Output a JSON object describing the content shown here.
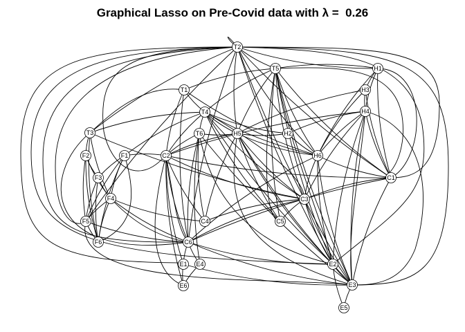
{
  "title": "Graphical Lasso on Pre-Covid data with λ =  0.26",
  "nodes": [
    "T2",
    "T5",
    "H1",
    "H3",
    "H4",
    "T1",
    "T4",
    "T6",
    "H5",
    "H2",
    "T3",
    "F2",
    "F1",
    "C2",
    "H6",
    "C1",
    "F3",
    "F4",
    "C3",
    "F5",
    "C4",
    "C5",
    "F6",
    "C6",
    "E1",
    "E4",
    "E2",
    "E6",
    "E3",
    "E5"
  ],
  "edges": [
    [
      "T2",
      "T5"
    ],
    [
      "T2",
      "H5"
    ],
    [
      "T2",
      "H1"
    ],
    [
      "T2",
      "T3"
    ],
    [
      "T2",
      "C1"
    ],
    [
      "T2",
      "E2"
    ],
    [
      "T2",
      "E3"
    ],
    [
      "T2",
      "C6"
    ],
    [
      "T2",
      "H6"
    ],
    [
      "T2",
      "F5"
    ],
    [
      "T5",
      "T4"
    ],
    [
      "T5",
      "H5"
    ],
    [
      "T5",
      "H6"
    ],
    [
      "T5",
      "C3"
    ],
    [
      "T5",
      "C5"
    ],
    [
      "T5",
      "E2"
    ],
    [
      "T5",
      "E3"
    ],
    [
      "T5",
      "C1"
    ],
    [
      "T5",
      "T1"
    ],
    [
      "H1",
      "H3"
    ],
    [
      "H1",
      "H4"
    ],
    [
      "H1",
      "C1"
    ],
    [
      "H1",
      "H6"
    ],
    [
      "H1",
      "T5"
    ],
    [
      "H3",
      "H4"
    ],
    [
      "H3",
      "C1"
    ],
    [
      "H3",
      "H6"
    ],
    [
      "H3",
      "H5"
    ],
    [
      "H4",
      "H2"
    ],
    [
      "H4",
      "H6"
    ],
    [
      "H4",
      "C1"
    ],
    [
      "H4",
      "E2"
    ],
    [
      "H4",
      "E3"
    ],
    [
      "H4",
      "C3"
    ],
    [
      "H4",
      "C2"
    ],
    [
      "T1",
      "T4"
    ],
    [
      "T1",
      "C2"
    ],
    [
      "T1",
      "H6"
    ],
    [
      "T1",
      "C6"
    ],
    [
      "T4",
      "T6"
    ],
    [
      "T4",
      "H5"
    ],
    [
      "T4",
      "H2"
    ],
    [
      "T4",
      "H6"
    ],
    [
      "T4",
      "C2"
    ],
    [
      "T4",
      "F1"
    ],
    [
      "T4",
      "C3"
    ],
    [
      "T4",
      "E2"
    ],
    [
      "T4",
      "C5"
    ],
    [
      "T4",
      "T3"
    ],
    [
      "T6",
      "C4"
    ],
    [
      "T6",
      "C2"
    ],
    [
      "T6",
      "H5"
    ],
    [
      "T6",
      "C6"
    ],
    [
      "T6",
      "E4"
    ],
    [
      "T6",
      "E3"
    ],
    [
      "H5",
      "H2"
    ],
    [
      "H5",
      "H6"
    ],
    [
      "H5",
      "C5"
    ],
    [
      "H5",
      "C3"
    ],
    [
      "H5",
      "E2"
    ],
    [
      "H5",
      "C2"
    ],
    [
      "H5",
      "C4"
    ],
    [
      "H5",
      "E3"
    ],
    [
      "H2",
      "H6"
    ],
    [
      "H6",
      "C1"
    ],
    [
      "H6",
      "C3"
    ],
    [
      "H6",
      "E2"
    ],
    [
      "H6",
      "E3"
    ],
    [
      "H6",
      "C6"
    ],
    [
      "C2",
      "C1"
    ],
    [
      "C2",
      "C3"
    ],
    [
      "C2",
      "C6"
    ],
    [
      "C2",
      "E1"
    ],
    [
      "C2",
      "E6"
    ],
    [
      "C2",
      "F1"
    ],
    [
      "C2",
      "C4"
    ],
    [
      "C1",
      "C3"
    ],
    [
      "C1",
      "E3"
    ],
    [
      "C1",
      "C6"
    ],
    [
      "T3",
      "F2"
    ],
    [
      "T3",
      "F4"
    ],
    [
      "T3",
      "C3"
    ],
    [
      "T3",
      "F6"
    ],
    [
      "F2",
      "F3"
    ],
    [
      "F2",
      "F5"
    ],
    [
      "F2",
      "F6"
    ],
    [
      "F2",
      "F4"
    ],
    [
      "F1",
      "F3"
    ],
    [
      "F1",
      "F4"
    ],
    [
      "F1",
      "F5"
    ],
    [
      "F1",
      "F6"
    ],
    [
      "F3",
      "F4"
    ],
    [
      "F3",
      "F5"
    ],
    [
      "F3",
      "F6"
    ],
    [
      "F4",
      "F5"
    ],
    [
      "F4",
      "F6"
    ],
    [
      "F4",
      "C4"
    ],
    [
      "F4",
      "C6"
    ],
    [
      "F5",
      "F6"
    ],
    [
      "F5",
      "C6"
    ],
    [
      "C3",
      "C4"
    ],
    [
      "C3",
      "C6"
    ],
    [
      "C3",
      "E2"
    ],
    [
      "C3",
      "E3"
    ],
    [
      "C3",
      "C5"
    ],
    [
      "C6",
      "E1"
    ],
    [
      "C6",
      "E4"
    ],
    [
      "C6",
      "E2"
    ],
    [
      "C6",
      "E3"
    ],
    [
      "E1",
      "E6"
    ],
    [
      "E4",
      "E6"
    ],
    [
      "E2",
      "E3"
    ],
    [
      "E3",
      "E5"
    ],
    [
      "E2",
      "E5"
    ],
    [
      "E1",
      "E3"
    ]
  ]
}
